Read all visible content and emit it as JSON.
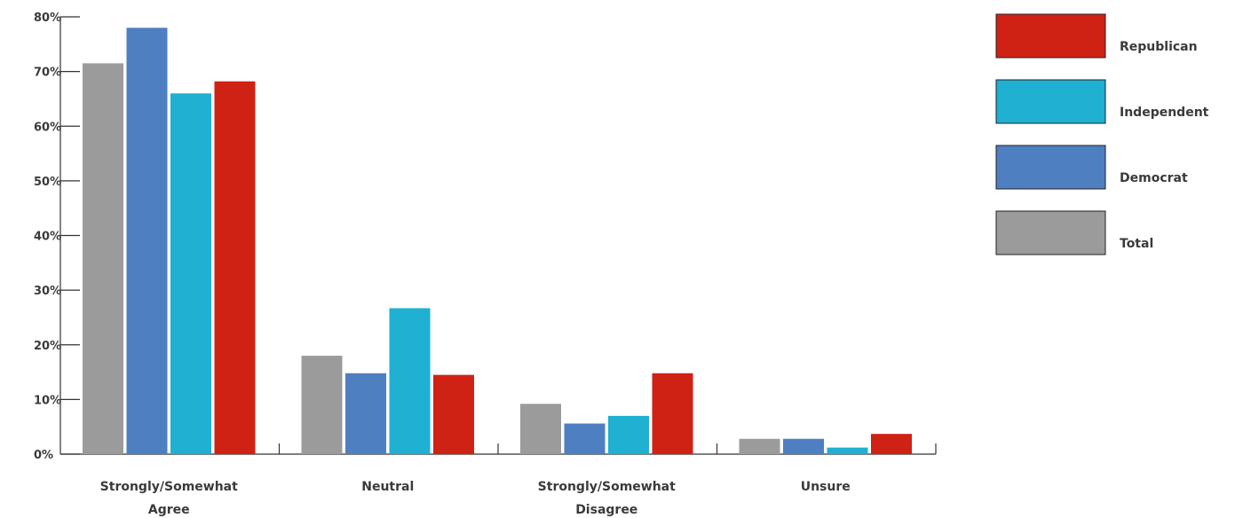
{
  "chart_data": {
    "type": "bar",
    "title": "",
    "xlabel": "",
    "ylabel": "",
    "ylim": [
      0,
      80
    ],
    "y_ticks": [
      "0%",
      "10%",
      "20%",
      "30%",
      "40%",
      "50%",
      "60%",
      "70%",
      "80%"
    ],
    "grid": false,
    "legend_position": "right",
    "categories": [
      [
        "Strongly/Somewhat",
        "Agree"
      ],
      [
        "Neutral"
      ],
      [
        "Strongly/Somewhat",
        "Disagree"
      ],
      [
        "Unsure"
      ]
    ],
    "series": [
      {
        "name": "Total",
        "color": "#9b9b9b",
        "values": [
          71.5,
          18,
          9.2,
          2.8
        ]
      },
      {
        "name": "Democrat",
        "color": "#4e7fc1",
        "values": [
          78,
          14.8,
          5.6,
          2.8
        ]
      },
      {
        "name": "Independent",
        "color": "#1fb0d2",
        "values": [
          66,
          26.7,
          7,
          1.2
        ]
      },
      {
        "name": "Republican",
        "color": "#d02115",
        "values": [
          68.2,
          14.5,
          14.8,
          3.7
        ]
      }
    ],
    "legend_order": [
      "Republican",
      "Independent",
      "Democrat",
      "Total"
    ]
  }
}
